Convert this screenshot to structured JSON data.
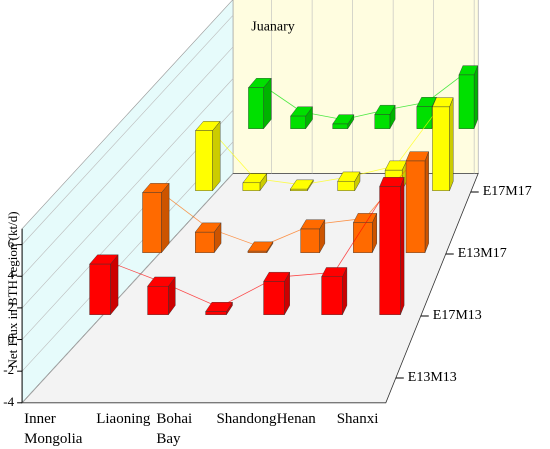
{
  "chart_data": {
    "type": "bar3d",
    "annotation": "Juanary",
    "y_label": "Net Flux in BTH region (kt/d)",
    "categories": [
      "Inner Mongolia",
      "Liaoning",
      "Bohai Bay",
      "Shandong",
      "Henan",
      "Shanxi"
    ],
    "series": [
      {
        "name": "E13M13",
        "color": "#ff0000",
        "values": [
          3.2,
          1.8,
          0.2,
          2.1,
          2.4,
          8.1
        ]
      },
      {
        "name": "E17M13",
        "color": "#ff6a00",
        "values": [
          3.8,
          1.3,
          0.1,
          1.5,
          1.9,
          5.8
        ]
      },
      {
        "name": "E13M17",
        "color": "#ffff00",
        "values": [
          3.8,
          0.5,
          0.1,
          0.6,
          1.3,
          5.3
        ]
      },
      {
        "name": "E17M17",
        "color": "#00e000",
        "values": [
          2.6,
          0.8,
          0.3,
          0.9,
          1.4,
          3.4
        ]
      }
    ],
    "ylim": [
      -4,
      7
    ],
    "yticks": [
      -4,
      -2,
      0,
      2,
      4,
      6
    ],
    "grid": true
  }
}
